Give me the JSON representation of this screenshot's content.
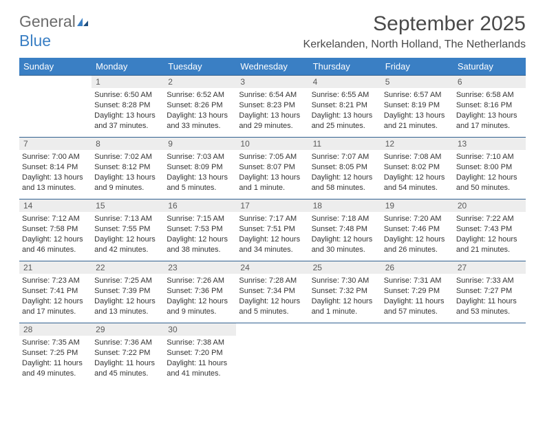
{
  "logo": {
    "word1": "General",
    "word2": "Blue"
  },
  "title": "September 2025",
  "location": "Kerkelanden, North Holland, The Netherlands",
  "colors": {
    "header_bg": "#3a7fc4",
    "header_text": "#ffffff",
    "daynum_bg": "#ededed",
    "rule": "#2f5f8f",
    "body_text": "#333333"
  },
  "day_headers": [
    "Sunday",
    "Monday",
    "Tuesday",
    "Wednesday",
    "Thursday",
    "Friday",
    "Saturday"
  ],
  "weeks": [
    [
      {
        "n": "",
        "lines": []
      },
      {
        "n": "1",
        "lines": [
          "Sunrise: 6:50 AM",
          "Sunset: 8:28 PM",
          "Daylight: 13 hours and 37 minutes."
        ]
      },
      {
        "n": "2",
        "lines": [
          "Sunrise: 6:52 AM",
          "Sunset: 8:26 PM",
          "Daylight: 13 hours and 33 minutes."
        ]
      },
      {
        "n": "3",
        "lines": [
          "Sunrise: 6:54 AM",
          "Sunset: 8:23 PM",
          "Daylight: 13 hours and 29 minutes."
        ]
      },
      {
        "n": "4",
        "lines": [
          "Sunrise: 6:55 AM",
          "Sunset: 8:21 PM",
          "Daylight: 13 hours and 25 minutes."
        ]
      },
      {
        "n": "5",
        "lines": [
          "Sunrise: 6:57 AM",
          "Sunset: 8:19 PM",
          "Daylight: 13 hours and 21 minutes."
        ]
      },
      {
        "n": "6",
        "lines": [
          "Sunrise: 6:58 AM",
          "Sunset: 8:16 PM",
          "Daylight: 13 hours and 17 minutes."
        ]
      }
    ],
    [
      {
        "n": "7",
        "lines": [
          "Sunrise: 7:00 AM",
          "Sunset: 8:14 PM",
          "Daylight: 13 hours and 13 minutes."
        ]
      },
      {
        "n": "8",
        "lines": [
          "Sunrise: 7:02 AM",
          "Sunset: 8:12 PM",
          "Daylight: 13 hours and 9 minutes."
        ]
      },
      {
        "n": "9",
        "lines": [
          "Sunrise: 7:03 AM",
          "Sunset: 8:09 PM",
          "Daylight: 13 hours and 5 minutes."
        ]
      },
      {
        "n": "10",
        "lines": [
          "Sunrise: 7:05 AM",
          "Sunset: 8:07 PM",
          "Daylight: 13 hours and 1 minute."
        ]
      },
      {
        "n": "11",
        "lines": [
          "Sunrise: 7:07 AM",
          "Sunset: 8:05 PM",
          "Daylight: 12 hours and 58 minutes."
        ]
      },
      {
        "n": "12",
        "lines": [
          "Sunrise: 7:08 AM",
          "Sunset: 8:02 PM",
          "Daylight: 12 hours and 54 minutes."
        ]
      },
      {
        "n": "13",
        "lines": [
          "Sunrise: 7:10 AM",
          "Sunset: 8:00 PM",
          "Daylight: 12 hours and 50 minutes."
        ]
      }
    ],
    [
      {
        "n": "14",
        "lines": [
          "Sunrise: 7:12 AM",
          "Sunset: 7:58 PM",
          "Daylight: 12 hours and 46 minutes."
        ]
      },
      {
        "n": "15",
        "lines": [
          "Sunrise: 7:13 AM",
          "Sunset: 7:55 PM",
          "Daylight: 12 hours and 42 minutes."
        ]
      },
      {
        "n": "16",
        "lines": [
          "Sunrise: 7:15 AM",
          "Sunset: 7:53 PM",
          "Daylight: 12 hours and 38 minutes."
        ]
      },
      {
        "n": "17",
        "lines": [
          "Sunrise: 7:17 AM",
          "Sunset: 7:51 PM",
          "Daylight: 12 hours and 34 minutes."
        ]
      },
      {
        "n": "18",
        "lines": [
          "Sunrise: 7:18 AM",
          "Sunset: 7:48 PM",
          "Daylight: 12 hours and 30 minutes."
        ]
      },
      {
        "n": "19",
        "lines": [
          "Sunrise: 7:20 AM",
          "Sunset: 7:46 PM",
          "Daylight: 12 hours and 26 minutes."
        ]
      },
      {
        "n": "20",
        "lines": [
          "Sunrise: 7:22 AM",
          "Sunset: 7:43 PM",
          "Daylight: 12 hours and 21 minutes."
        ]
      }
    ],
    [
      {
        "n": "21",
        "lines": [
          "Sunrise: 7:23 AM",
          "Sunset: 7:41 PM",
          "Daylight: 12 hours and 17 minutes."
        ]
      },
      {
        "n": "22",
        "lines": [
          "Sunrise: 7:25 AM",
          "Sunset: 7:39 PM",
          "Daylight: 12 hours and 13 minutes."
        ]
      },
      {
        "n": "23",
        "lines": [
          "Sunrise: 7:26 AM",
          "Sunset: 7:36 PM",
          "Daylight: 12 hours and 9 minutes."
        ]
      },
      {
        "n": "24",
        "lines": [
          "Sunrise: 7:28 AM",
          "Sunset: 7:34 PM",
          "Daylight: 12 hours and 5 minutes."
        ]
      },
      {
        "n": "25",
        "lines": [
          "Sunrise: 7:30 AM",
          "Sunset: 7:32 PM",
          "Daylight: 12 hours and 1 minute."
        ]
      },
      {
        "n": "26",
        "lines": [
          "Sunrise: 7:31 AM",
          "Sunset: 7:29 PM",
          "Daylight: 11 hours and 57 minutes."
        ]
      },
      {
        "n": "27",
        "lines": [
          "Sunrise: 7:33 AM",
          "Sunset: 7:27 PM",
          "Daylight: 11 hours and 53 minutes."
        ]
      }
    ],
    [
      {
        "n": "28",
        "lines": [
          "Sunrise: 7:35 AM",
          "Sunset: 7:25 PM",
          "Daylight: 11 hours and 49 minutes."
        ]
      },
      {
        "n": "29",
        "lines": [
          "Sunrise: 7:36 AM",
          "Sunset: 7:22 PM",
          "Daylight: 11 hours and 45 minutes."
        ]
      },
      {
        "n": "30",
        "lines": [
          "Sunrise: 7:38 AM",
          "Sunset: 7:20 PM",
          "Daylight: 11 hours and 41 minutes."
        ]
      },
      {
        "n": "",
        "lines": []
      },
      {
        "n": "",
        "lines": []
      },
      {
        "n": "",
        "lines": []
      },
      {
        "n": "",
        "lines": []
      }
    ]
  ]
}
